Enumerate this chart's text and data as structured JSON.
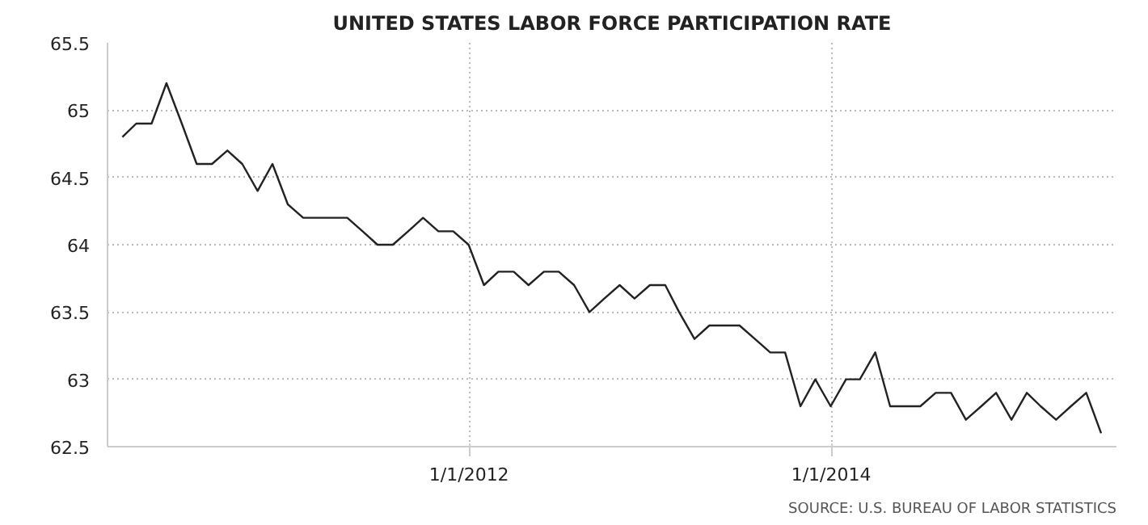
{
  "chart_data": {
    "type": "line",
    "title": "UNITED STATES LABOR FORCE PARTICIPATION RATE",
    "annotations": [
      "SOURCE: U.S. BUREAU OF LABOR STATISTICS"
    ],
    "x": [
      "2010-01-31",
      "2010-02-28",
      "2010-03-31",
      "2010-04-30",
      "2010-05-31",
      "2010-06-30",
      "2010-07-31",
      "2010-08-31",
      "2010-09-30",
      "2010-10-31",
      "2010-11-30",
      "2010-12-31",
      "2011-01-31",
      "2011-02-28",
      "2011-03-31",
      "2011-04-30",
      "2011-05-31",
      "2011-06-30",
      "2011-07-31",
      "2011-08-31",
      "2011-09-30",
      "2011-10-31",
      "2011-11-30",
      "2011-12-31",
      "2012-01-31",
      "2012-02-29",
      "2012-03-31",
      "2012-04-30",
      "2012-05-31",
      "2012-06-30",
      "2012-07-31",
      "2012-08-31",
      "2012-09-30",
      "2012-10-31",
      "2012-11-30",
      "2012-12-31",
      "2013-01-31",
      "2013-02-28",
      "2013-03-31",
      "2013-04-30",
      "2013-05-31",
      "2013-06-30",
      "2013-07-31",
      "2013-08-31",
      "2013-09-30",
      "2013-10-31",
      "2013-11-30",
      "2013-12-31",
      "2014-01-31",
      "2014-02-28",
      "2014-03-31",
      "2014-04-30",
      "2014-05-31",
      "2014-06-30",
      "2014-07-31",
      "2014-08-31",
      "2014-09-30",
      "2014-10-31",
      "2014-11-30",
      "2014-12-31",
      "2015-01-31",
      "2015-02-28",
      "2015-03-31",
      "2015-04-30",
      "2015-05-31",
      "2015-06-30"
    ],
    "series": [
      {
        "color": "#222222",
        "values": [
          64.8,
          64.9,
          64.9,
          65.2,
          64.9,
          64.6,
          64.6,
          64.7,
          64.6,
          64.4,
          64.6,
          64.3,
          64.2,
          64.2,
          64.2,
          64.2,
          64.1,
          64.0,
          64.0,
          64.1,
          64.2,
          64.1,
          64.1,
          64.0,
          63.7,
          63.8,
          63.8,
          63.7,
          63.8,
          63.8,
          63.7,
          63.5,
          63.6,
          63.7,
          63.6,
          63.7,
          63.7,
          63.5,
          63.3,
          63.4,
          63.4,
          63.4,
          63.3,
          63.2,
          63.2,
          62.8,
          63.0,
          62.8,
          63.0,
          63.0,
          63.2,
          62.8,
          62.8,
          62.8,
          62.9,
          62.9,
          62.7,
          62.8,
          62.9,
          62.7,
          62.9,
          62.8,
          62.7,
          62.8,
          62.9,
          62.6
        ]
      }
    ],
    "xlim": [
      "2010-01-01",
      "2015-07-31"
    ],
    "xticks": [
      {
        "value": "2012-01-01",
        "label": "1/1/2012"
      },
      {
        "value": "2014-01-01",
        "label": "1/1/2014"
      }
    ],
    "ylim": [
      62.5,
      65.5
    ],
    "yticks": [
      62.5,
      {
        "value": 63,
        "label": "63"
      },
      63.5,
      {
        "value": 64,
        "label": "64"
      },
      64.5,
      {
        "value": 65,
        "label": "65"
      },
      65.5
    ],
    "grid": true,
    "marker": "none",
    "line_style": "solid"
  }
}
